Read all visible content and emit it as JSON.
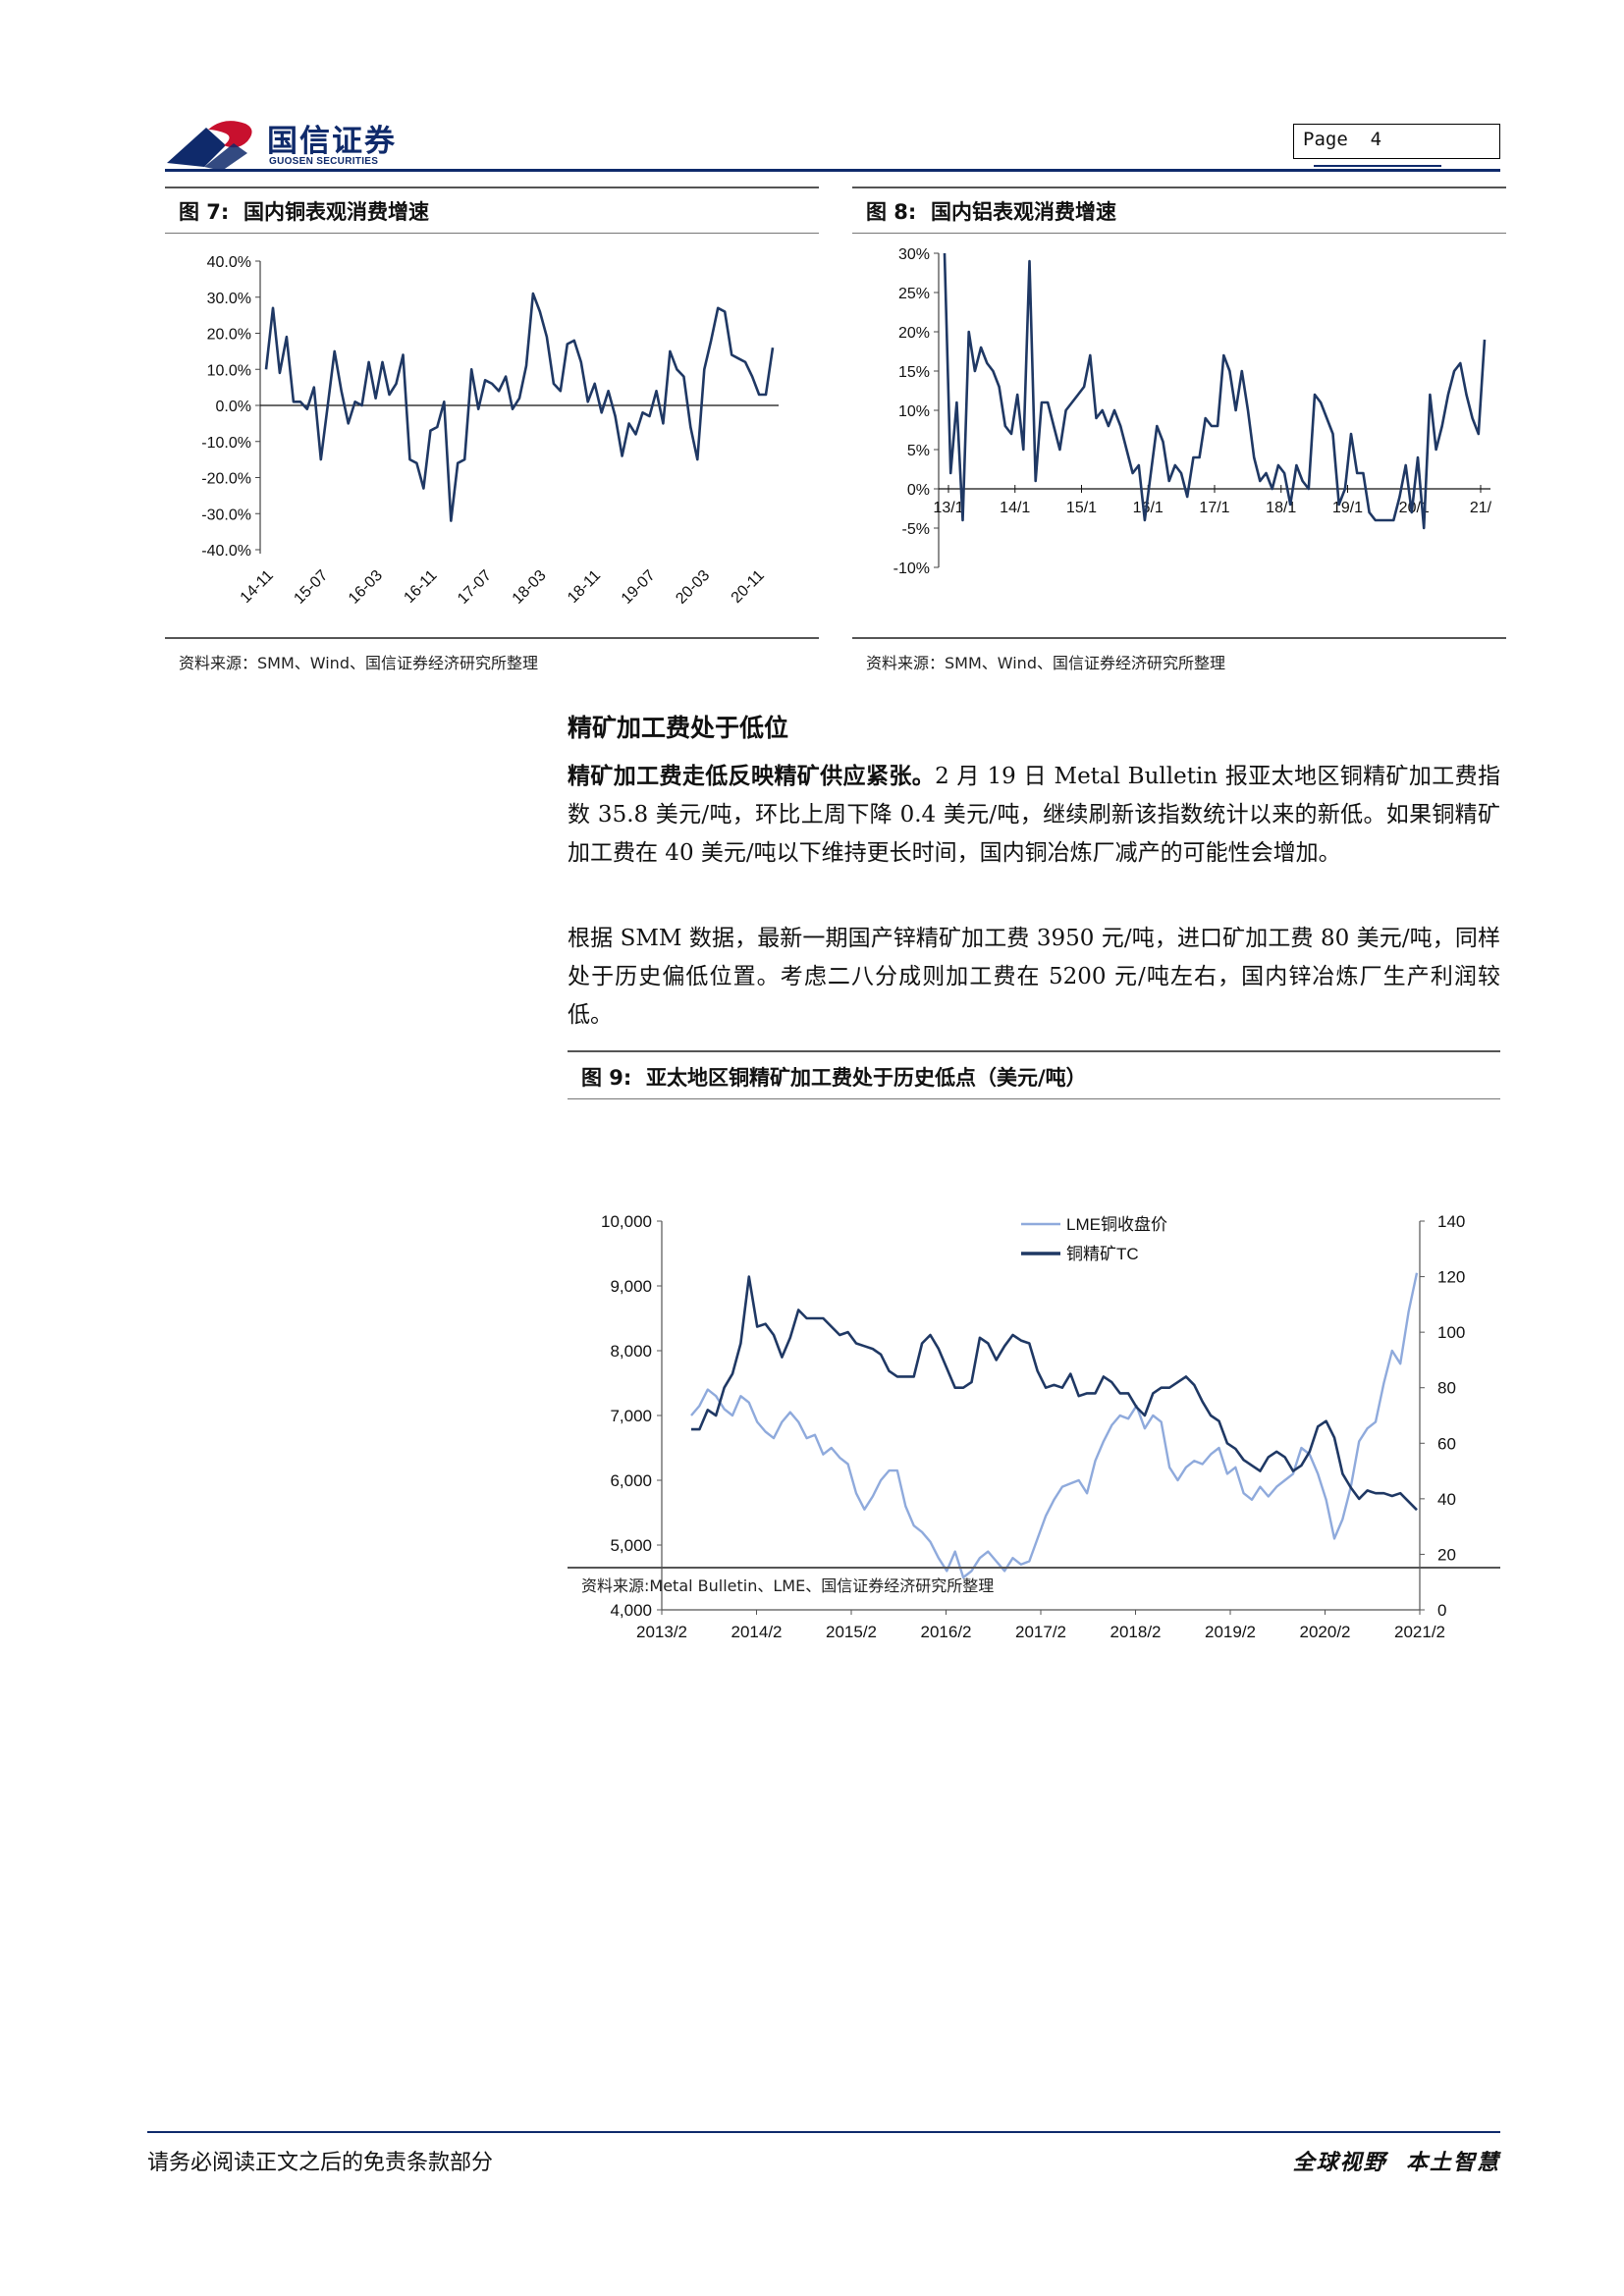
{
  "header": {
    "logo_cn": "国信证券",
    "logo_en": "GUOSEN SECURITIES",
    "page_label": "Page",
    "page_number": "4"
  },
  "fig7": {
    "label": "图 7:",
    "title": "国内铜表观消费增速",
    "source": "资料来源：SMM、Wind、国信证券经济研究所整理"
  },
  "fig8": {
    "label": "图 8:",
    "title": "国内铝表观消费增速",
    "source": "资料来源：SMM、Wind、国信证券经济研究所整理"
  },
  "section": {
    "heading": "精矿加工费处于低位",
    "p1_bold": "精矿加工费走低反映精矿供应紧张。",
    "p1_rest": "2 月 19 日 Metal Bulletin 报亚太地区铜精矿加工费指数 35.8 美元/吨，环比上周下降 0.4 美元/吨，继续刷新该指数统计以来的新低。如果铜精矿加工费在 40 美元/吨以下维持更长时间，国内铜冶炼厂减产的可能性会增加。",
    "p2": "根据 SMM 数据，最新一期国产锌精矿加工费 3950 元/吨，进口矿加工费 80 美元/吨，同样处于历史偏低位置。考虑二八分成则加工费在 5200 元/吨左右，国内锌冶炼厂生产利润较低。"
  },
  "fig9": {
    "label": "图 9:",
    "title": "亚太地区铜精矿加工费处于历史低点（美元/吨）",
    "source": "资料来源:Metal Bulletin、LME、国信证券经济研究所整理"
  },
  "footer": {
    "left": "请务必阅读正文之后的免责条款部分",
    "right": "全球视野  本土智慧"
  },
  "colors": {
    "navy": "#0f2a6b",
    "series_dark": "#1f3864",
    "series_light": "#8faadc",
    "logo_red": "#c8102e"
  },
  "chart_data": [
    {
      "id": "fig7",
      "type": "line",
      "ylim": [
        -0.4,
        0.4
      ],
      "yticks": [
        "40.0%",
        "30.0%",
        "20.0%",
        "10.0%",
        "0.0%",
        "-10.0%",
        "-20.0%",
        "-30.0%",
        "-40.0%"
      ],
      "xticks": [
        "14-11",
        "15-07",
        "16-03",
        "16-11",
        "17-07",
        "18-03",
        "18-11",
        "19-07",
        "20-03",
        "20-11"
      ],
      "series": [
        {
          "values": [
            0.1,
            0.27,
            0.09,
            0.19,
            0.01,
            0.01,
            -0.01,
            0.05,
            -0.15,
            0.0,
            0.15,
            0.04,
            -0.05,
            0.01,
            0.0,
            0.12,
            0.02,
            0.12,
            0.03,
            0.06,
            0.14,
            -0.15,
            -0.16,
            -0.23,
            -0.07,
            -0.06,
            0.01,
            -0.32,
            -0.16,
            -0.15,
            0.1,
            -0.01,
            0.07,
            0.06,
            0.04,
            0.08,
            -0.01,
            0.02,
            0.11,
            0.31,
            0.26,
            0.19,
            0.06,
            0.04,
            0.17,
            0.18,
            0.12,
            0.01,
            0.06,
            -0.02,
            0.04,
            -0.03,
            -0.14,
            -0.05,
            -0.08,
            -0.02,
            -0.03,
            0.04,
            -0.05,
            0.15,
            0.1,
            0.08,
            -0.06,
            -0.15,
            0.1,
            0.18,
            0.27,
            0.26,
            0.14,
            0.13,
            0.12,
            0.08,
            0.03,
            0.03,
            0.16
          ]
        }
      ]
    },
    {
      "id": "fig8",
      "type": "line",
      "ylim": [
        -0.1,
        0.3
      ],
      "yticks": [
        "30%",
        "25%",
        "20%",
        "15%",
        "10%",
        "5%",
        "0%",
        "-5%",
        "-10%"
      ],
      "xticks": [
        "13/1",
        "14/1",
        "15/1",
        "16/1",
        "17/1",
        "18/1",
        "19/1",
        "20/1",
        "21/"
      ],
      "series": [
        {
          "values": [
            0.3,
            0.02,
            0.11,
            -0.04,
            0.2,
            0.15,
            0.18,
            0.16,
            0.15,
            0.13,
            0.08,
            0.07,
            0.12,
            0.05,
            0.29,
            0.01,
            0.11,
            0.11,
            0.08,
            0.05,
            0.1,
            0.11,
            0.12,
            0.13,
            0.17,
            0.09,
            0.1,
            0.08,
            0.1,
            0.08,
            0.05,
            0.02,
            0.03,
            -0.04,
            0.02,
            0.08,
            0.06,
            0.01,
            0.03,
            0.02,
            -0.01,
            0.04,
            0.04,
            0.09,
            0.08,
            0.08,
            0.17,
            0.15,
            0.1,
            0.15,
            0.1,
            0.04,
            0.01,
            0.02,
            0.0,
            0.03,
            0.02,
            -0.02,
            0.03,
            0.01,
            0.0,
            0.12,
            0.11,
            0.09,
            0.07,
            -0.02,
            0.0,
            0.07,
            0.02,
            0.02,
            -0.03,
            -0.04,
            -0.04,
            -0.04,
            -0.04,
            -0.01,
            0.03,
            -0.03,
            0.04,
            -0.05,
            0.12,
            0.05,
            0.08,
            0.12,
            0.15,
            0.16,
            0.12,
            0.09,
            0.07,
            0.19
          ]
        }
      ]
    },
    {
      "id": "fig9",
      "type": "line",
      "xticks": [
        "2013/2",
        "2014/2",
        "2015/2",
        "2016/2",
        "2017/2",
        "2018/2",
        "2019/2",
        "2020/2",
        "2021/2"
      ],
      "y_left": {
        "ylim": [
          4000,
          10000
        ],
        "ticks": [
          "10,000",
          "9,000",
          "8,000",
          "7,000",
          "6,000",
          "5,000",
          "4,000"
        ]
      },
      "y_right": {
        "ylim": [
          0,
          140
        ],
        "ticks": [
          "140",
          "120",
          "100",
          "80",
          "60",
          "40",
          "20",
          "0"
        ]
      },
      "legend_position": "top-center",
      "series": [
        {
          "name": "LME铜收盘价",
          "axis": "left",
          "values": [
            7000,
            7150,
            7400,
            7300,
            7100,
            7000,
            7300,
            7200,
            6900,
            6750,
            6650,
            6900,
            7050,
            6900,
            6650,
            6700,
            6400,
            6500,
            6350,
            6250,
            5800,
            5550,
            5750,
            6000,
            6150,
            6150,
            5600,
            5300,
            5200,
            5050,
            4800,
            4600,
            4900,
            4500,
            4600,
            4800,
            4900,
            4750,
            4600,
            4800,
            4700,
            4750,
            5100,
            5450,
            5700,
            5900,
            5950,
            6000,
            5800,
            6300,
            6600,
            6850,
            7000,
            6950,
            7150,
            6800,
            7000,
            6900,
            6200,
            6000,
            6200,
            6300,
            6250,
            6400,
            6500,
            6100,
            6200,
            5800,
            5700,
            5900,
            5750,
            5900,
            6000,
            6100,
            6500,
            6400,
            6100,
            5700,
            5100,
            5400,
            5900,
            6600,
            6800,
            6900,
            7500,
            8000,
            7800,
            8600,
            9200
          ]
        },
        {
          "name": "铜精矿TC",
          "axis": "right",
          "values": [
            65,
            65,
            72,
            70,
            80,
            85,
            96,
            120,
            102,
            103,
            99,
            91,
            98,
            108,
            105,
            105,
            105,
            102,
            99,
            100,
            96,
            95,
            94,
            92,
            86,
            84,
            84,
            84,
            96,
            99,
            94,
            87,
            80,
            80,
            82,
            98,
            96,
            90,
            95,
            99,
            97,
            96,
            86,
            80,
            81,
            80,
            85,
            77,
            78,
            78,
            84,
            82,
            78,
            78,
            73,
            70,
            78,
            80,
            80,
            82,
            84,
            81,
            75,
            70,
            68,
            60,
            58,
            54,
            52,
            50,
            55,
            57,
            55,
            50,
            52,
            57,
            66,
            68,
            62,
            49,
            44,
            40,
            43,
            42,
            42,
            41,
            42,
            39,
            36
          ]
        }
      ]
    }
  ]
}
